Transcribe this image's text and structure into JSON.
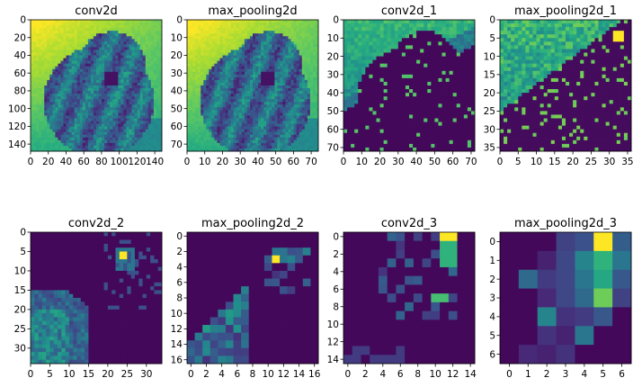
{
  "figure": {
    "description_type": "feature-map grid",
    "colormap": "viridis",
    "colors": {
      "low": "#440154",
      "mid": "#21918c",
      "high": "#fde725"
    }
  },
  "chart_data": [
    {
      "type": "heatmap",
      "title": "conv2d",
      "size": 148,
      "grid": 48,
      "xticks": [
        0,
        20,
        40,
        60,
        80,
        100,
        120,
        140
      ],
      "yticks": [
        0,
        20,
        40,
        60,
        80,
        100,
        120,
        140
      ],
      "pattern": "dog"
    },
    {
      "type": "heatmap",
      "title": "max_pooling2d",
      "size": 74,
      "grid": 48,
      "xticks": [
        0,
        10,
        20,
        30,
        40,
        50,
        60,
        70
      ],
      "yticks": [
        0,
        10,
        20,
        30,
        40,
        50,
        60,
        70
      ],
      "pattern": "dog"
    },
    {
      "type": "heatmap",
      "title": "conv2d_1",
      "size": 72,
      "grid": 36,
      "xticks": [
        0,
        10,
        20,
        30,
        40,
        50,
        60,
        70
      ],
      "yticks": [
        0,
        10,
        20,
        30,
        40,
        50,
        60,
        70
      ],
      "pattern": "edge1"
    },
    {
      "type": "heatmap",
      "title": "max_pooling2d_1",
      "size": 36,
      "grid": 36,
      "xticks": [
        0,
        5,
        10,
        15,
        20,
        25,
        30,
        35
      ],
      "yticks": [
        0,
        5,
        10,
        15,
        20,
        25,
        30,
        35
      ],
      "pattern": "edge2"
    },
    {
      "type": "heatmap",
      "title": "conv2d_2",
      "size": 34,
      "grid": 34,
      "xticks": [
        0,
        5,
        10,
        15,
        20,
        25,
        30
      ],
      "yticks": [
        0,
        5,
        10,
        15,
        20,
        25,
        30
      ],
      "pattern": "sparse1"
    },
    {
      "type": "heatmap",
      "title": "max_pooling2d_2",
      "size": 17,
      "grid": 17,
      "xticks": [
        0,
        2,
        4,
        6,
        8,
        10,
        12,
        14,
        16
      ],
      "yticks": [
        0,
        2,
        4,
        6,
        8,
        10,
        12,
        14,
        16
      ],
      "pattern": "sparse2"
    },
    {
      "type": "heatmap",
      "title": "conv2d_3",
      "size": 15,
      "grid": 15,
      "xticks": [
        0,
        2,
        4,
        6,
        8,
        10,
        12,
        14
      ],
      "yticks": [
        0,
        2,
        4,
        6,
        8,
        10,
        12,
        14
      ],
      "pattern": "sparse3"
    },
    {
      "type": "heatmap",
      "title": "max_pooling2d_3",
      "size": 7,
      "grid": 7,
      "xticks": [
        0,
        1,
        2,
        3,
        4,
        5,
        6
      ],
      "yticks": [
        0,
        1,
        2,
        3,
        4,
        5,
        6
      ],
      "pattern": "coarse"
    }
  ]
}
